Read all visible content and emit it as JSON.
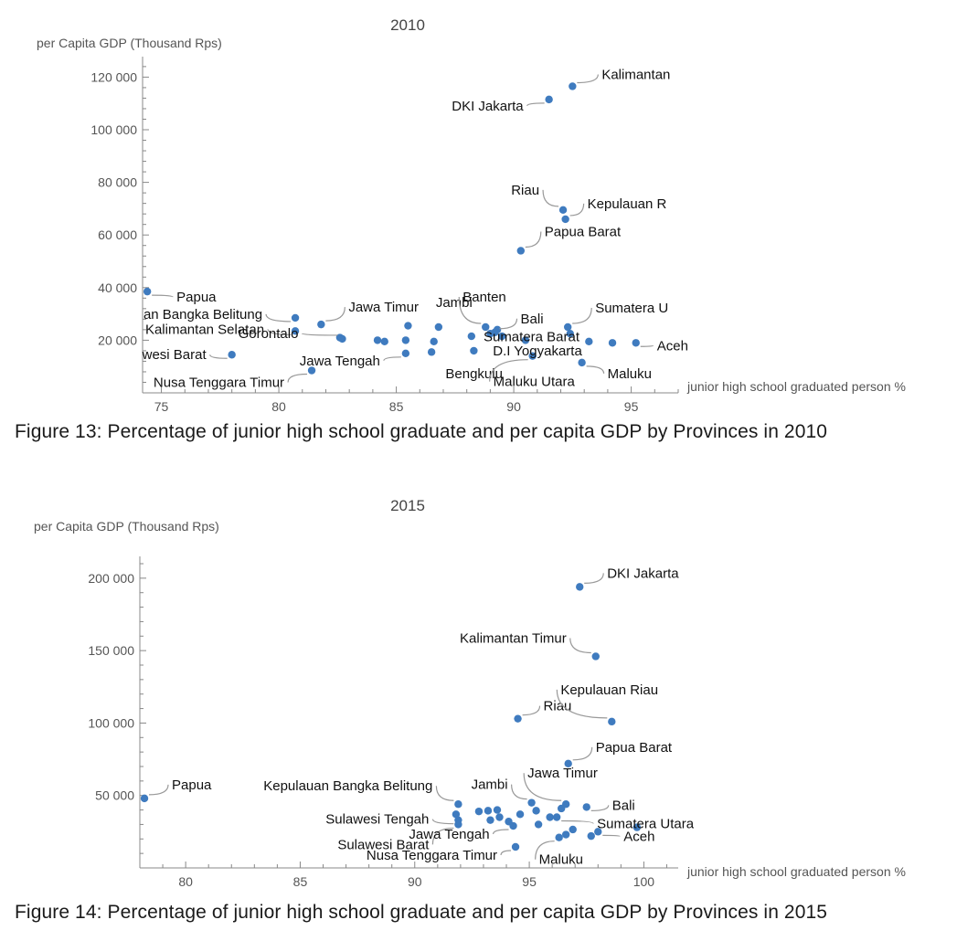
{
  "chart_data": [
    {
      "type": "scatter",
      "title": "2010",
      "xlabel": "junior high school graduated person %",
      "ylabel": "per Capita GDP (Thousand Rps)",
      "xlim": [
        74.2,
        97
      ],
      "ylim": [
        0,
        125000
      ],
      "x_ticks": [
        75,
        80,
        85,
        90,
        95
      ],
      "y_ticks": [
        20000,
        40000,
        60000,
        80000,
        100000,
        120000
      ],
      "x_tick_labels": [
        "75",
        "80",
        "85",
        "90",
        "95"
      ],
      "y_tick_labels": [
        "20 000",
        "40 000",
        "60 000",
        "80 000",
        "100 000",
        "120 000"
      ],
      "grid": false,
      "point_color": "#3f7bbf",
      "points": [
        {
          "x": 92.5,
          "y": 116500,
          "label": "Kalimantan"
        },
        {
          "x": 91.5,
          "y": 111500,
          "label": "DKI Jakarta"
        },
        {
          "x": 92.1,
          "y": 69500,
          "label": "Riau"
        },
        {
          "x": 92.2,
          "y": 66000,
          "label": "Kepulauan R"
        },
        {
          "x": 90.3,
          "y": 54000,
          "label": "Papua Barat"
        },
        {
          "x": 74.4,
          "y": 38500,
          "label": "Papua"
        },
        {
          "x": 80.7,
          "y": 28500,
          "label": "an Bangka Belitung"
        },
        {
          "x": 81.8,
          "y": 26000,
          "label": "Jawa Timur"
        },
        {
          "x": 80.7,
          "y": 23500,
          "label": "Kalimantan Selatan"
        },
        {
          "x": 82.7,
          "y": 20500,
          "label": "Gorontalo"
        },
        {
          "x": 78.0,
          "y": 14500,
          "label": "wesi Barat"
        },
        {
          "x": 85.4,
          "y": 15000,
          "label": "Jawa Tengah"
        },
        {
          "x": 81.4,
          "y": 8500,
          "label": "Nusa Tenggara Timur"
        },
        {
          "x": 86.8,
          "y": 25000,
          "label": "Jambi"
        },
        {
          "x": 88.8,
          "y": 25000,
          "label": "Banten"
        },
        {
          "x": 89.2,
          "y": 23000,
          "label": "Bali"
        },
        {
          "x": 92.3,
          "y": 25000,
          "label": "Sumatera U"
        },
        {
          "x": 94.2,
          "y": 19000,
          "label": "Sumatera Barat"
        },
        {
          "x": 95.2,
          "y": 19000,
          "label": "Aceh"
        },
        {
          "x": 89.5,
          "y": 21500,
          "label": "D.I Yogyakarta"
        },
        {
          "x": 88.3,
          "y": 16000,
          "label": "Bengkulu"
        },
        {
          "x": 90.8,
          "y": 14000,
          "label": "Maluku Utara"
        },
        {
          "x": 92.9,
          "y": 11500,
          "label": "Maluku"
        },
        {
          "x": 82.6,
          "y": 21000,
          "label": ""
        },
        {
          "x": 84.2,
          "y": 20000,
          "label": ""
        },
        {
          "x": 84.5,
          "y": 19500,
          "label": ""
        },
        {
          "x": 85.4,
          "y": 20000,
          "label": ""
        },
        {
          "x": 85.5,
          "y": 25500,
          "label": ""
        },
        {
          "x": 86.5,
          "y": 15500,
          "label": ""
        },
        {
          "x": 86.6,
          "y": 19500,
          "label": ""
        },
        {
          "x": 88.2,
          "y": 21500,
          "label": ""
        },
        {
          "x": 89.0,
          "y": 22500,
          "label": ""
        },
        {
          "x": 89.3,
          "y": 24000,
          "label": ""
        },
        {
          "x": 90.5,
          "y": 20000,
          "label": ""
        },
        {
          "x": 92.4,
          "y": 22500,
          "label": ""
        },
        {
          "x": 93.2,
          "y": 19500,
          "label": ""
        }
      ]
    },
    {
      "type": "scatter",
      "title": "2015",
      "xlabel": "junior high school graduated person %",
      "ylabel": "per Capita GDP (Thousand Rps)",
      "xlim": [
        78,
        101.5
      ],
      "ylim": [
        0,
        210000
      ],
      "x_ticks": [
        80,
        85,
        90,
        95,
        100
      ],
      "y_ticks": [
        50000,
        100000,
        150000,
        200000
      ],
      "x_tick_labels": [
        "80",
        "85",
        "90",
        "95",
        "100"
      ],
      "y_tick_labels": [
        "50 000",
        "100 000",
        "150 000",
        "200 000"
      ],
      "grid": false,
      "point_color": "#3f7bbf",
      "points": [
        {
          "x": 97.2,
          "y": 194000,
          "label": "DKI Jakarta"
        },
        {
          "x": 97.9,
          "y": 146000,
          "label": "Kalimantan Timur"
        },
        {
          "x": 94.5,
          "y": 103000,
          "label": "Riau"
        },
        {
          "x": 98.6,
          "y": 101000,
          "label": "Kepulauan Riau"
        },
        {
          "x": 96.7,
          "y": 72000,
          "label": "Papua Barat"
        },
        {
          "x": 78.2,
          "y": 48000,
          "label": "Papua"
        },
        {
          "x": 91.9,
          "y": 44000,
          "label": "Kepulauan Bangka Belitung"
        },
        {
          "x": 95.1,
          "y": 45000,
          "label": "Jambi"
        },
        {
          "x": 96.6,
          "y": 44000,
          "label": "Jawa Timur"
        },
        {
          "x": 97.5,
          "y": 42000,
          "label": "Bali"
        },
        {
          "x": 96.2,
          "y": 35000,
          "label": "Sumatera Utara"
        },
        {
          "x": 91.9,
          "y": 33000,
          "label": "Sulawesi Tengah"
        },
        {
          "x": 91.9,
          "y": 30000,
          "label": "Sulawesi Barat"
        },
        {
          "x": 94.3,
          "y": 29000,
          "label": "Jawa Tengah"
        },
        {
          "x": 98.0,
          "y": 25000,
          "label": "Aceh"
        },
        {
          "x": 94.4,
          "y": 14500,
          "label": "Nusa Tenggara Timur"
        },
        {
          "x": 96.3,
          "y": 21000,
          "label": "Maluku"
        },
        {
          "x": 99.7,
          "y": 28000,
          "label": ""
        },
        {
          "x": 91.8,
          "y": 37000,
          "label": ""
        },
        {
          "x": 92.8,
          "y": 39000,
          "label": ""
        },
        {
          "x": 93.2,
          "y": 39500,
          "label": ""
        },
        {
          "x": 93.6,
          "y": 40000,
          "label": ""
        },
        {
          "x": 93.7,
          "y": 35000,
          "label": ""
        },
        {
          "x": 93.3,
          "y": 33000,
          "label": ""
        },
        {
          "x": 94.1,
          "y": 32000,
          "label": ""
        },
        {
          "x": 94.6,
          "y": 37000,
          "label": ""
        },
        {
          "x": 95.3,
          "y": 39500,
          "label": ""
        },
        {
          "x": 95.4,
          "y": 30000,
          "label": ""
        },
        {
          "x": 95.9,
          "y": 35000,
          "label": ""
        },
        {
          "x": 96.4,
          "y": 41000,
          "label": ""
        },
        {
          "x": 96.6,
          "y": 23000,
          "label": ""
        },
        {
          "x": 96.9,
          "y": 26500,
          "label": ""
        },
        {
          "x": 97.7,
          "y": 22000,
          "label": ""
        }
      ]
    }
  ],
  "captions": {
    "figure13": "Figure 13: Percentage of junior high school graduate and per capita GDP by Provinces in 2010",
    "figure14": "Figure 14: Percentage of junior high school graduate and per capita GDP by Provinces in 2015"
  }
}
